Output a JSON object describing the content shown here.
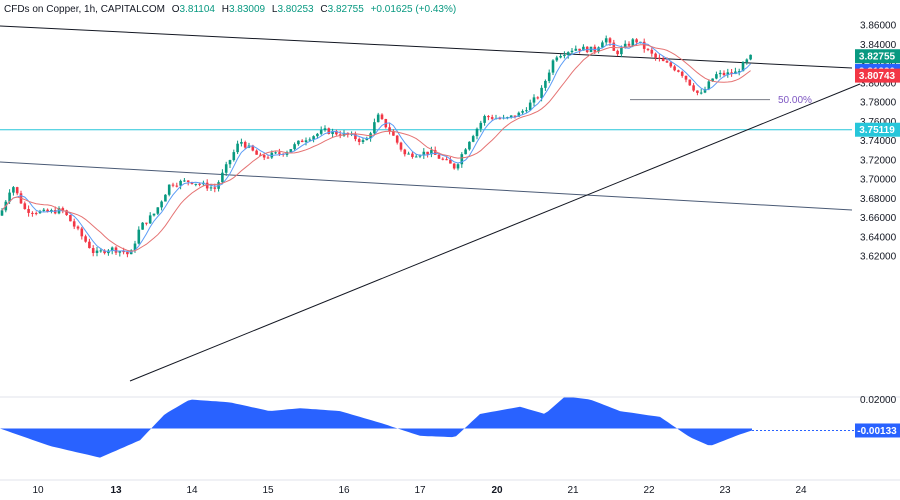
{
  "header": {
    "symbol": "CFDs on Copper, 1h, CAPITALCOM",
    "open_label": "O",
    "open": "3.81104",
    "high_label": "H",
    "high": "3.83009",
    "low_label": "L",
    "low": "3.80253",
    "close_label": "C",
    "close": "3.82755",
    "change": "+0.01625 (+0.43%)"
  },
  "colors": {
    "up": "#089981",
    "down": "#f23645",
    "ma_fast": "#5b9cf6",
    "ma_slow": "#e57373",
    "horizontal": "#26c6da",
    "oscillator": "#2962ff",
    "trendline": "#131722",
    "channel": "#4a5a75"
  },
  "chart_data": [
    {
      "type": "candlestick",
      "ylim": [
        3.605,
        3.865
      ],
      "y_ticks": [
        "3.86000",
        "3.84000",
        "3.82000",
        "3.80000",
        "3.78000",
        "3.76000",
        "3.74000",
        "3.72000",
        "3.70000",
        "3.68000",
        "3.66000",
        "3.64000",
        "3.62000"
      ],
      "x_ticks": [
        "10",
        "13",
        "14",
        "15",
        "16",
        "17",
        "20",
        "21",
        "22",
        "23",
        "24"
      ],
      "price_labels": [
        {
          "value": "3.82755",
          "color": "#089981"
        },
        {
          "value": "3.81230",
          "color": "#2962ff"
        },
        {
          "value": "3.80743",
          "color": "#f23645"
        },
        {
          "value": "3.75119",
          "color": "#26c6da"
        }
      ],
      "horizontal_level": 3.75119,
      "annotation": {
        "text": "50.00%",
        "price": 3.7825
      },
      "key_path": [
        [
          0,
          3.662
        ],
        [
          12,
          3.695
        ],
        [
          25,
          3.668
        ],
        [
          45,
          3.665
        ],
        [
          62,
          3.668
        ],
        [
          75,
          3.65
        ],
        [
          95,
          3.622
        ],
        [
          110,
          3.628
        ],
        [
          125,
          3.624
        ],
        [
          130,
          3.62
        ],
        [
          140,
          3.65
        ],
        [
          155,
          3.665
        ],
        [
          170,
          3.695
        ],
        [
          190,
          3.698
        ],
        [
          215,
          3.69
        ],
        [
          240,
          3.74
        ],
        [
          260,
          3.722
        ],
        [
          285,
          3.728
        ],
        [
          305,
          3.742
        ],
        [
          325,
          3.75
        ],
        [
          350,
          3.745
        ],
        [
          365,
          3.738
        ],
        [
          378,
          3.765
        ],
        [
          390,
          3.75
        ],
        [
          405,
          3.725
        ],
        [
          430,
          3.728
        ],
        [
          455,
          3.712
        ],
        [
          470,
          3.742
        ],
        [
          485,
          3.765
        ],
        [
          505,
          3.762
        ],
        [
          520,
          3.768
        ],
        [
          540,
          3.788
        ],
        [
          555,
          3.828
        ],
        [
          575,
          3.836
        ],
        [
          595,
          3.834
        ],
        [
          605,
          3.848
        ],
        [
          615,
          3.83
        ],
        [
          635,
          3.845
        ],
        [
          655,
          3.826
        ],
        [
          680,
          3.812
        ],
        [
          700,
          3.786
        ],
        [
          715,
          3.808
        ],
        [
          735,
          3.81
        ],
        [
          752,
          3.828
        ]
      ]
    },
    {
      "type": "area",
      "ylim": [
        -0.034,
        0.021
      ],
      "y_ticks": [
        "0.02000",
        "0.00000"
      ],
      "value_label": "-0.00133",
      "key_path": [
        [
          0,
          0.0
        ],
        [
          50,
          -0.012
        ],
        [
          100,
          -0.02
        ],
        [
          140,
          -0.008
        ],
        [
          165,
          0.01
        ],
        [
          190,
          0.02
        ],
        [
          230,
          0.018
        ],
        [
          270,
          0.012
        ],
        [
          300,
          0.014
        ],
        [
          340,
          0.012
        ],
        [
          380,
          0.004
        ],
        [
          420,
          -0.005
        ],
        [
          455,
          -0.006
        ],
        [
          480,
          0.01
        ],
        [
          520,
          0.015
        ],
        [
          545,
          0.01
        ],
        [
          565,
          0.022
        ],
        [
          590,
          0.02
        ],
        [
          620,
          0.012
        ],
        [
          660,
          0.008
        ],
        [
          690,
          -0.006
        ],
        [
          710,
          -0.012
        ],
        [
          740,
          -0.004
        ],
        [
          752,
          -0.00133
        ]
      ]
    }
  ]
}
